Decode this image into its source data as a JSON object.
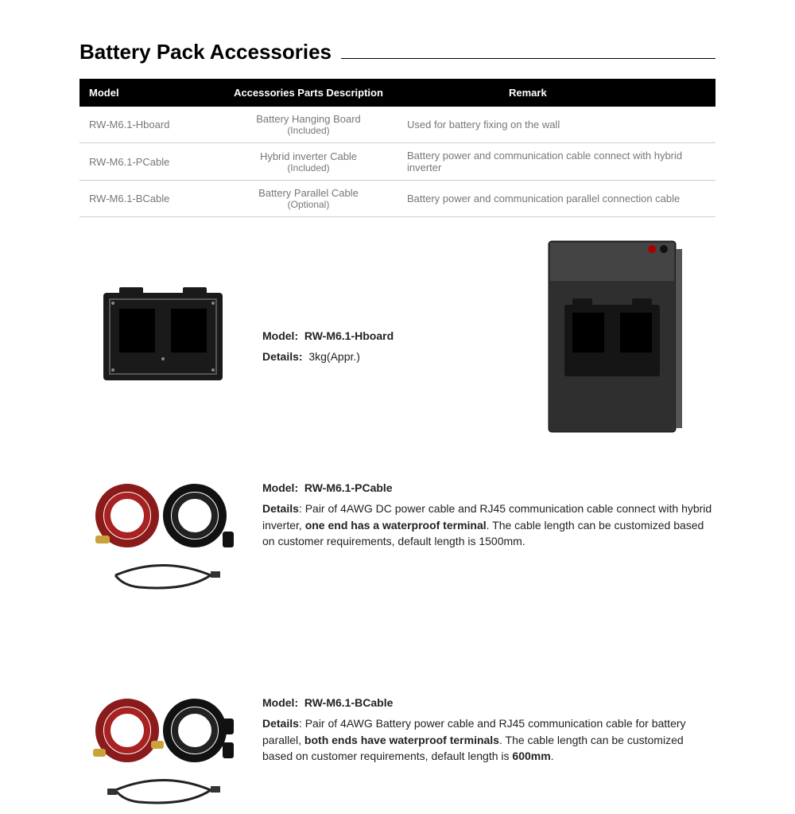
{
  "title": "Battery Pack Accessories",
  "table": {
    "headers": {
      "model": "Model",
      "desc": "Accessories Parts Description",
      "remark": "Remark"
    },
    "rows": [
      {
        "model": "RW-M6.1-Hboard",
        "desc_line1": "Battery Hanging Board",
        "desc_line2": "(Included)",
        "remark": "Used for battery fixing on the wall"
      },
      {
        "model": "RW-M6.1-PCable",
        "desc_line1": "Hybrid inverter Cable",
        "desc_line2": "(Included)",
        "remark": "Battery power and communication cable connect with hybrid inverter"
      },
      {
        "model": "RW-M6.1-BCable",
        "desc_line1": "Battery Parallel Cable",
        "desc_line2": "(Optional)",
        "remark": "Battery power and communication parallel connection cable"
      }
    ]
  },
  "products": [
    {
      "model_label": "Model:",
      "model": "RW-M6.1-Hboard",
      "details_label": "Details:",
      "details_plain": "3kg(Appr.)",
      "has_extra_image": true
    },
    {
      "model_label": "Model:",
      "model": "RW-M6.1-PCable",
      "details_label": "Details",
      "details_pre": ":  Pair of 4AWG DC power cable and RJ45 communication cable connect with hybrid inverter, ",
      "details_bold": "one end has a waterproof terminal",
      "details_post": ". The cable length can be customized based on customer requirements, default length is 1500mm."
    },
    {
      "model_label": "Model:",
      "model": "RW-M6.1-BCable",
      "details_label": "Details",
      "details_pre": ": Pair of 4AWG Battery power cable and RJ45 communication cable for battery parallel, ",
      "details_bold": "both ends have waterproof terminals",
      "details_post": ". The cable length can be customized based on customer requirements, default length is ",
      "details_bold2": "600mm",
      "details_post2": "."
    }
  ],
  "colors": {
    "header_bg": "#000000",
    "header_fg": "#ffffff",
    "body_text": "#777777",
    "cable_red": "#8b1a1a",
    "cable_black": "#111111",
    "board_fill": "#1e1e1e",
    "battery_fill": "#3a3a3a"
  }
}
